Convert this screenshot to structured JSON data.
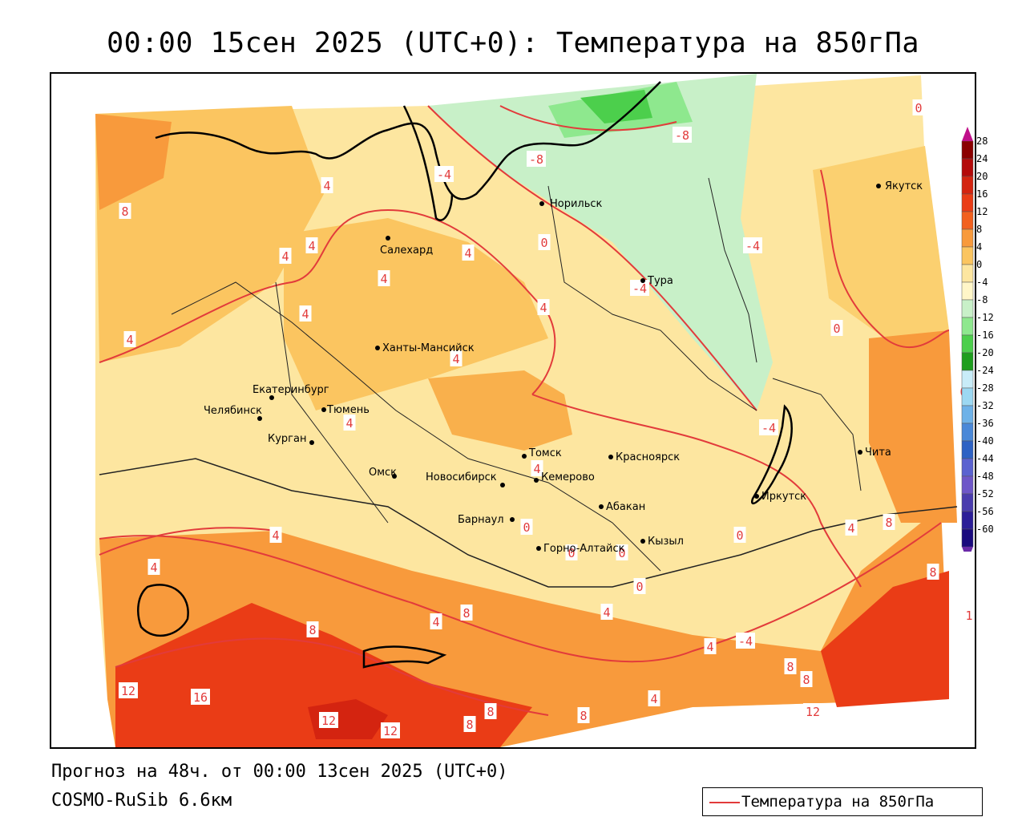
{
  "title": "00:00 15сен 2025 (UTC+0): Температура на 850гПа",
  "forecast_line": "Прогноз на 48ч. от 00:00 13сен 2025 (UTC+0)",
  "model_line": "COSMO-RuSib 6.6км",
  "legend": {
    "label": "Температура на 850гПа",
    "line_color": "#e23b3b"
  },
  "colorbar": {
    "ticks": [
      "28",
      "24",
      "20",
      "16",
      "12",
      "8",
      "4",
      "0",
      "-4",
      "-8",
      "-12",
      "-16",
      "-20",
      "-24",
      "-28",
      "-32",
      "-36",
      "-40",
      "-44",
      "-48",
      "-52",
      "-56",
      "-60"
    ],
    "colors": [
      "#8b0000",
      "#b40a0a",
      "#d42410",
      "#ea3c16",
      "#f2601e",
      "#f89a3c",
      "#fbc560",
      "#fde6a0",
      "#fff6c8",
      "#c8f0c8",
      "#8ee88e",
      "#4ccf4c",
      "#1e9e1e",
      "#c8ecf8",
      "#9cd8f2",
      "#6eb2e8",
      "#4a88d8",
      "#2e62c4",
      "#5a62d0",
      "#6e56c8",
      "#4a3cae",
      "#2c1e98",
      "#1a0a7e"
    ],
    "top_arrow_color": "#c0108a",
    "bottom_arrow_color": "#6a2aa8"
  },
  "cities": [
    {
      "name": "Норильск"
    },
    {
      "name": "Салехард"
    },
    {
      "name": "Тура"
    },
    {
      "name": "Якутск"
    },
    {
      "name": "Ханты-Мансийск"
    },
    {
      "name": "Екатеринбург"
    },
    {
      "name": "Тюмень"
    },
    {
      "name": "Челябинск"
    },
    {
      "name": "Курган"
    },
    {
      "name": "Омск"
    },
    {
      "name": "Новосибирск"
    },
    {
      "name": "Томск"
    },
    {
      "name": "Кемерово"
    },
    {
      "name": "Красноярск"
    },
    {
      "name": "Абакан"
    },
    {
      "name": "Барнаул"
    },
    {
      "name": "Горно-Алтайск"
    },
    {
      "name": "Кызыл"
    },
    {
      "name": "Иркутск"
    },
    {
      "name": "Чита"
    }
  ],
  "contour_labels": [
    "-8",
    "-4",
    "-8",
    "-4",
    "0",
    "-4",
    "-4",
    "0",
    "4",
    "8",
    "4",
    "4",
    "4",
    "4",
    "4",
    "4",
    "4",
    "4",
    "4",
    "0",
    "4",
    "0",
    "0",
    "0",
    "0",
    "4",
    "8",
    "4",
    "8",
    "12",
    "16",
    "12",
    "12",
    "8",
    "8",
    "8",
    "4",
    "4",
    "8",
    "12",
    "8",
    "8",
    "4",
    "8",
    "1",
    "0",
    "4",
    "0",
    "-4",
    "4"
  ]
}
